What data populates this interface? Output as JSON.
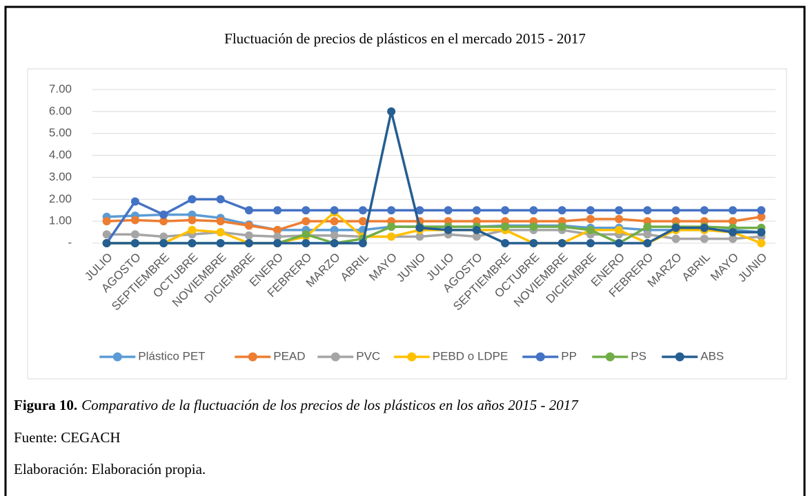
{
  "chart_data": {
    "type": "line",
    "title": "Fluctuación de precios de plásticos en el mercado 2015 - 2017",
    "categories": [
      "JULIO",
      "AGOSTO",
      "SEPTIEMBRE",
      "OCTUBRE",
      "NOVIEMBRE",
      "DICIEMBRE",
      "ENERO",
      "FEBRERO",
      "MARZO",
      "ABRIL",
      "MAYO",
      "JUNIO",
      "JULIO",
      "AGOSTO",
      "SEPTIEMBRE",
      "OCTUBRE",
      "NOVIEMBRE",
      "DICIEMBRE",
      "ENERO",
      "FEBRERO",
      "MARZO",
      "ABRIL",
      "MAYO",
      "JUNIO"
    ],
    "ylim": [
      0,
      7
    ],
    "yticks": [
      {
        "value": 0,
        "label": "-"
      },
      {
        "value": 1,
        "label": "1.00"
      },
      {
        "value": 2,
        "label": "2.00"
      },
      {
        "value": 3,
        "label": "3.00"
      },
      {
        "value": 4,
        "label": "4.00"
      },
      {
        "value": 5,
        "label": "5.00"
      },
      {
        "value": 6,
        "label": "6.00"
      },
      {
        "value": 7,
        "label": "7.00"
      }
    ],
    "grid": true,
    "legend": "bottom",
    "series": [
      {
        "name": "Plástico PET",
        "color": "#5b9bd5",
        "values": [
          1.2,
          1.25,
          1.3,
          1.3,
          1.15,
          0.85,
          0.6,
          0.6,
          0.6,
          0.6,
          0.75,
          0.75,
          0.75,
          0.75,
          0.8,
          0.8,
          0.8,
          0.7,
          0.7,
          0.6,
          0.6,
          0.6,
          0.6,
          0.5
        ]
      },
      {
        "name": "PEAD",
        "color": "#ed7d31",
        "values": [
          1.0,
          1.05,
          1.0,
          1.05,
          1.0,
          0.8,
          0.6,
          1.0,
          1.0,
          1.0,
          1.0,
          1.0,
          1.0,
          1.0,
          1.0,
          1.0,
          1.0,
          1.1,
          1.1,
          1.0,
          1.0,
          1.0,
          1.0,
          1.2
        ]
      },
      {
        "name": "PVC",
        "color": "#a5a5a5",
        "values": [
          0.4,
          0.4,
          0.3,
          0.4,
          0.5,
          0.35,
          0.3,
          0.35,
          0.35,
          0.3,
          0.3,
          0.3,
          0.4,
          0.3,
          0.6,
          0.6,
          0.6,
          0.4,
          0.4,
          0.4,
          0.2,
          0.2,
          0.2,
          0.3
        ]
      },
      {
        "name": "PEBD o LDPE",
        "color": "#ffc000",
        "values": [
          0,
          0,
          0,
          0.6,
          0.5,
          0,
          0,
          0.3,
          1.4,
          0.3,
          0.3,
          0.6,
          0.6,
          0.6,
          0.6,
          0,
          0,
          0.6,
          0.6,
          0,
          0.6,
          0.6,
          0.5,
          0
        ]
      },
      {
        "name": "PP",
        "color": "#4472c4",
        "values": [
          0,
          1.9,
          1.3,
          2.0,
          2.0,
          1.5,
          1.5,
          1.5,
          1.5,
          1.5,
          1.5,
          1.5,
          1.5,
          1.5,
          1.5,
          1.5,
          1.5,
          1.5,
          1.5,
          1.5,
          1.5,
          1.5,
          1.5,
          1.5
        ]
      },
      {
        "name": "PS",
        "color": "#70ad47",
        "values": [
          0,
          0,
          0,
          0,
          0,
          0,
          0,
          0.4,
          0,
          0.2,
          0.75,
          0.75,
          0.75,
          0.75,
          0.75,
          0.75,
          0.75,
          0.6,
          0,
          0.75,
          0.75,
          0.75,
          0.7,
          0.7
        ]
      },
      {
        "name": "ABS",
        "color": "#255e91",
        "values": [
          0,
          0,
          0,
          0,
          0,
          0,
          0,
          0,
          0,
          0,
          6,
          0.7,
          0.6,
          0.6,
          0,
          0,
          0,
          0,
          0,
          0,
          0.7,
          0.7,
          0.5,
          0.5
        ]
      }
    ]
  },
  "caption": {
    "label": "Figura 10.",
    "text": "Comparativo de la fluctuación de los precios de los plásticos en los años 2015 - 2017"
  },
  "source": "Fuente: CEGACH",
  "credit": "Elaboración: Elaboración propia."
}
